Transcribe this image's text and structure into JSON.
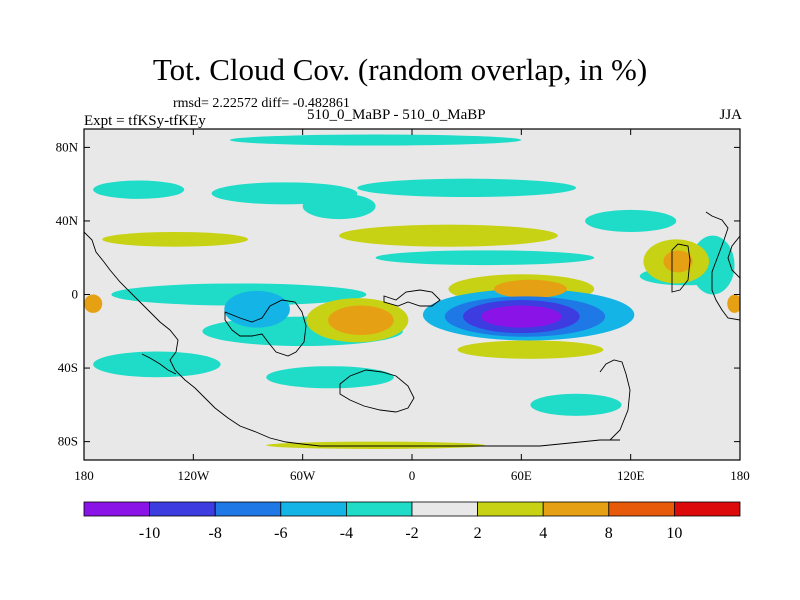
{
  "chart_data": {
    "type": "heatmap",
    "title": "Tot. Cloud Cov. (random overlap, in %)",
    "stats": "rmsd= 2.22572  diff= -0.482861",
    "experiment": "Expt = tfKSy-tfKEy",
    "case": "510_0_MaBP - 510_0_MaBP",
    "season": "JJA",
    "xlim": [
      -180,
      180
    ],
    "ylim": [
      -90,
      90
    ],
    "x_ticks": [
      {
        "value": -180,
        "label": "180"
      },
      {
        "value": -120,
        "label": "120W"
      },
      {
        "value": -60,
        "label": "60W"
      },
      {
        "value": 0,
        "label": "0"
      },
      {
        "value": 60,
        "label": "60E"
      },
      {
        "value": 120,
        "label": "120E"
      },
      {
        "value": 180,
        "label": "180"
      }
    ],
    "y_ticks": [
      {
        "value": 80,
        "label": "80N"
      },
      {
        "value": 40,
        "label": "40N"
      },
      {
        "value": 0,
        "label": "0"
      },
      {
        "value": -40,
        "label": "40S"
      },
      {
        "value": -80,
        "label": "80S"
      }
    ],
    "colorbar": {
      "levels": [
        -10,
        -8,
        -6,
        -4,
        -2,
        2,
        4,
        8,
        10
      ],
      "labels": [
        "-10",
        "-8",
        "-6",
        "-4",
        "-2",
        "2",
        "4",
        "8",
        "10"
      ],
      "colors": [
        "#8a14e8",
        "#3c3ce0",
        "#1e78e6",
        "#14b4e6",
        "#1edcc8",
        "#e8e8e8",
        "#c8d214",
        "#e6a014",
        "#e65a0a",
        "#dc0a0a"
      ]
    },
    "anomaly_regions": [
      {
        "lon": 60,
        "lat": -12,
        "rlon": 22,
        "rlat": 6,
        "level": -10
      },
      {
        "lon": 60,
        "lat": -12,
        "rlon": 32,
        "rlat": 9,
        "level": -8
      },
      {
        "lon": 62,
        "lat": -12,
        "rlon": 44,
        "rlat": 11,
        "level": -6
      },
      {
        "lon": 64,
        "lat": -11,
        "rlon": 58,
        "rlat": 14,
        "level": -4
      },
      {
        "lon": -95,
        "lat": 0,
        "rlon": 70,
        "rlat": 6,
        "level": -2
      },
      {
        "lon": -85,
        "lat": -8,
        "rlon": 18,
        "rlat": 10,
        "level": -4
      },
      {
        "lon": -60,
        "lat": -20,
        "rlon": 55,
        "rlat": 8,
        "level": -2
      },
      {
        "lon": -140,
        "lat": -38,
        "rlon": 35,
        "rlat": 7,
        "level": -2
      },
      {
        "lon": -45,
        "lat": -45,
        "rlon": 35,
        "rlat": 6,
        "level": -2
      },
      {
        "lon": -150,
        "lat": 57,
        "rlon": 25,
        "rlat": 5,
        "level": -2
      },
      {
        "lon": -70,
        "lat": 55,
        "rlon": 40,
        "rlat": 6,
        "level": -2
      },
      {
        "lon": -40,
        "lat": 48,
        "rlon": 20,
        "rlat": 7,
        "level": -2
      },
      {
        "lon": 30,
        "lat": 58,
        "rlon": 60,
        "rlat": 5,
        "level": -2
      },
      {
        "lon": 40,
        "lat": 20,
        "rlon": 60,
        "rlat": 4,
        "level": -2
      },
      {
        "lon": 120,
        "lat": 40,
        "rlon": 25,
        "rlat": 6,
        "level": -2
      },
      {
        "lon": 150,
        "lat": 10,
        "rlon": 25,
        "rlat": 5,
        "level": -2
      },
      {
        "lon": 165,
        "lat": 16,
        "rlon": 12,
        "rlat": 16,
        "level": -2
      },
      {
        "lon": 90,
        "lat": -60,
        "rlon": 25,
        "rlat": 6,
        "level": -2
      },
      {
        "lon": -20,
        "lat": 84,
        "rlon": 80,
        "rlat": 3,
        "level": -2
      },
      {
        "lon": 60,
        "lat": 3,
        "rlon": 40,
        "rlat": 8,
        "level": 2
      },
      {
        "lon": 65,
        "lat": 3,
        "rlon": 20,
        "rlat": 5,
        "level": 4
      },
      {
        "lon": -30,
        "lat": -14,
        "rlon": 28,
        "rlat": 12,
        "level": 2
      },
      {
        "lon": -28,
        "lat": -14,
        "rlon": 18,
        "rlat": 8,
        "level": 4
      },
      {
        "lon": -130,
        "lat": 30,
        "rlon": 40,
        "rlat": 4,
        "level": 2
      },
      {
        "lon": 20,
        "lat": 32,
        "rlon": 60,
        "rlat": 6,
        "level": 2
      },
      {
        "lon": 145,
        "lat": 18,
        "rlon": 18,
        "rlat": 12,
        "level": 2
      },
      {
        "lon": 146,
        "lat": 18,
        "rlon": 8,
        "rlat": 6,
        "level": 4
      },
      {
        "lon": -175,
        "lat": -5,
        "rlon": 5,
        "rlat": 5,
        "level": 4
      },
      {
        "lon": 177,
        "lat": -5,
        "rlon": 4,
        "rlat": 5,
        "level": 4
      },
      {
        "lon": 65,
        "lat": -30,
        "rlon": 40,
        "rlat": 5,
        "level": 2
      },
      {
        "lon": -20,
        "lat": -82,
        "rlon": 60,
        "rlat": 2,
        "level": 2
      }
    ]
  }
}
